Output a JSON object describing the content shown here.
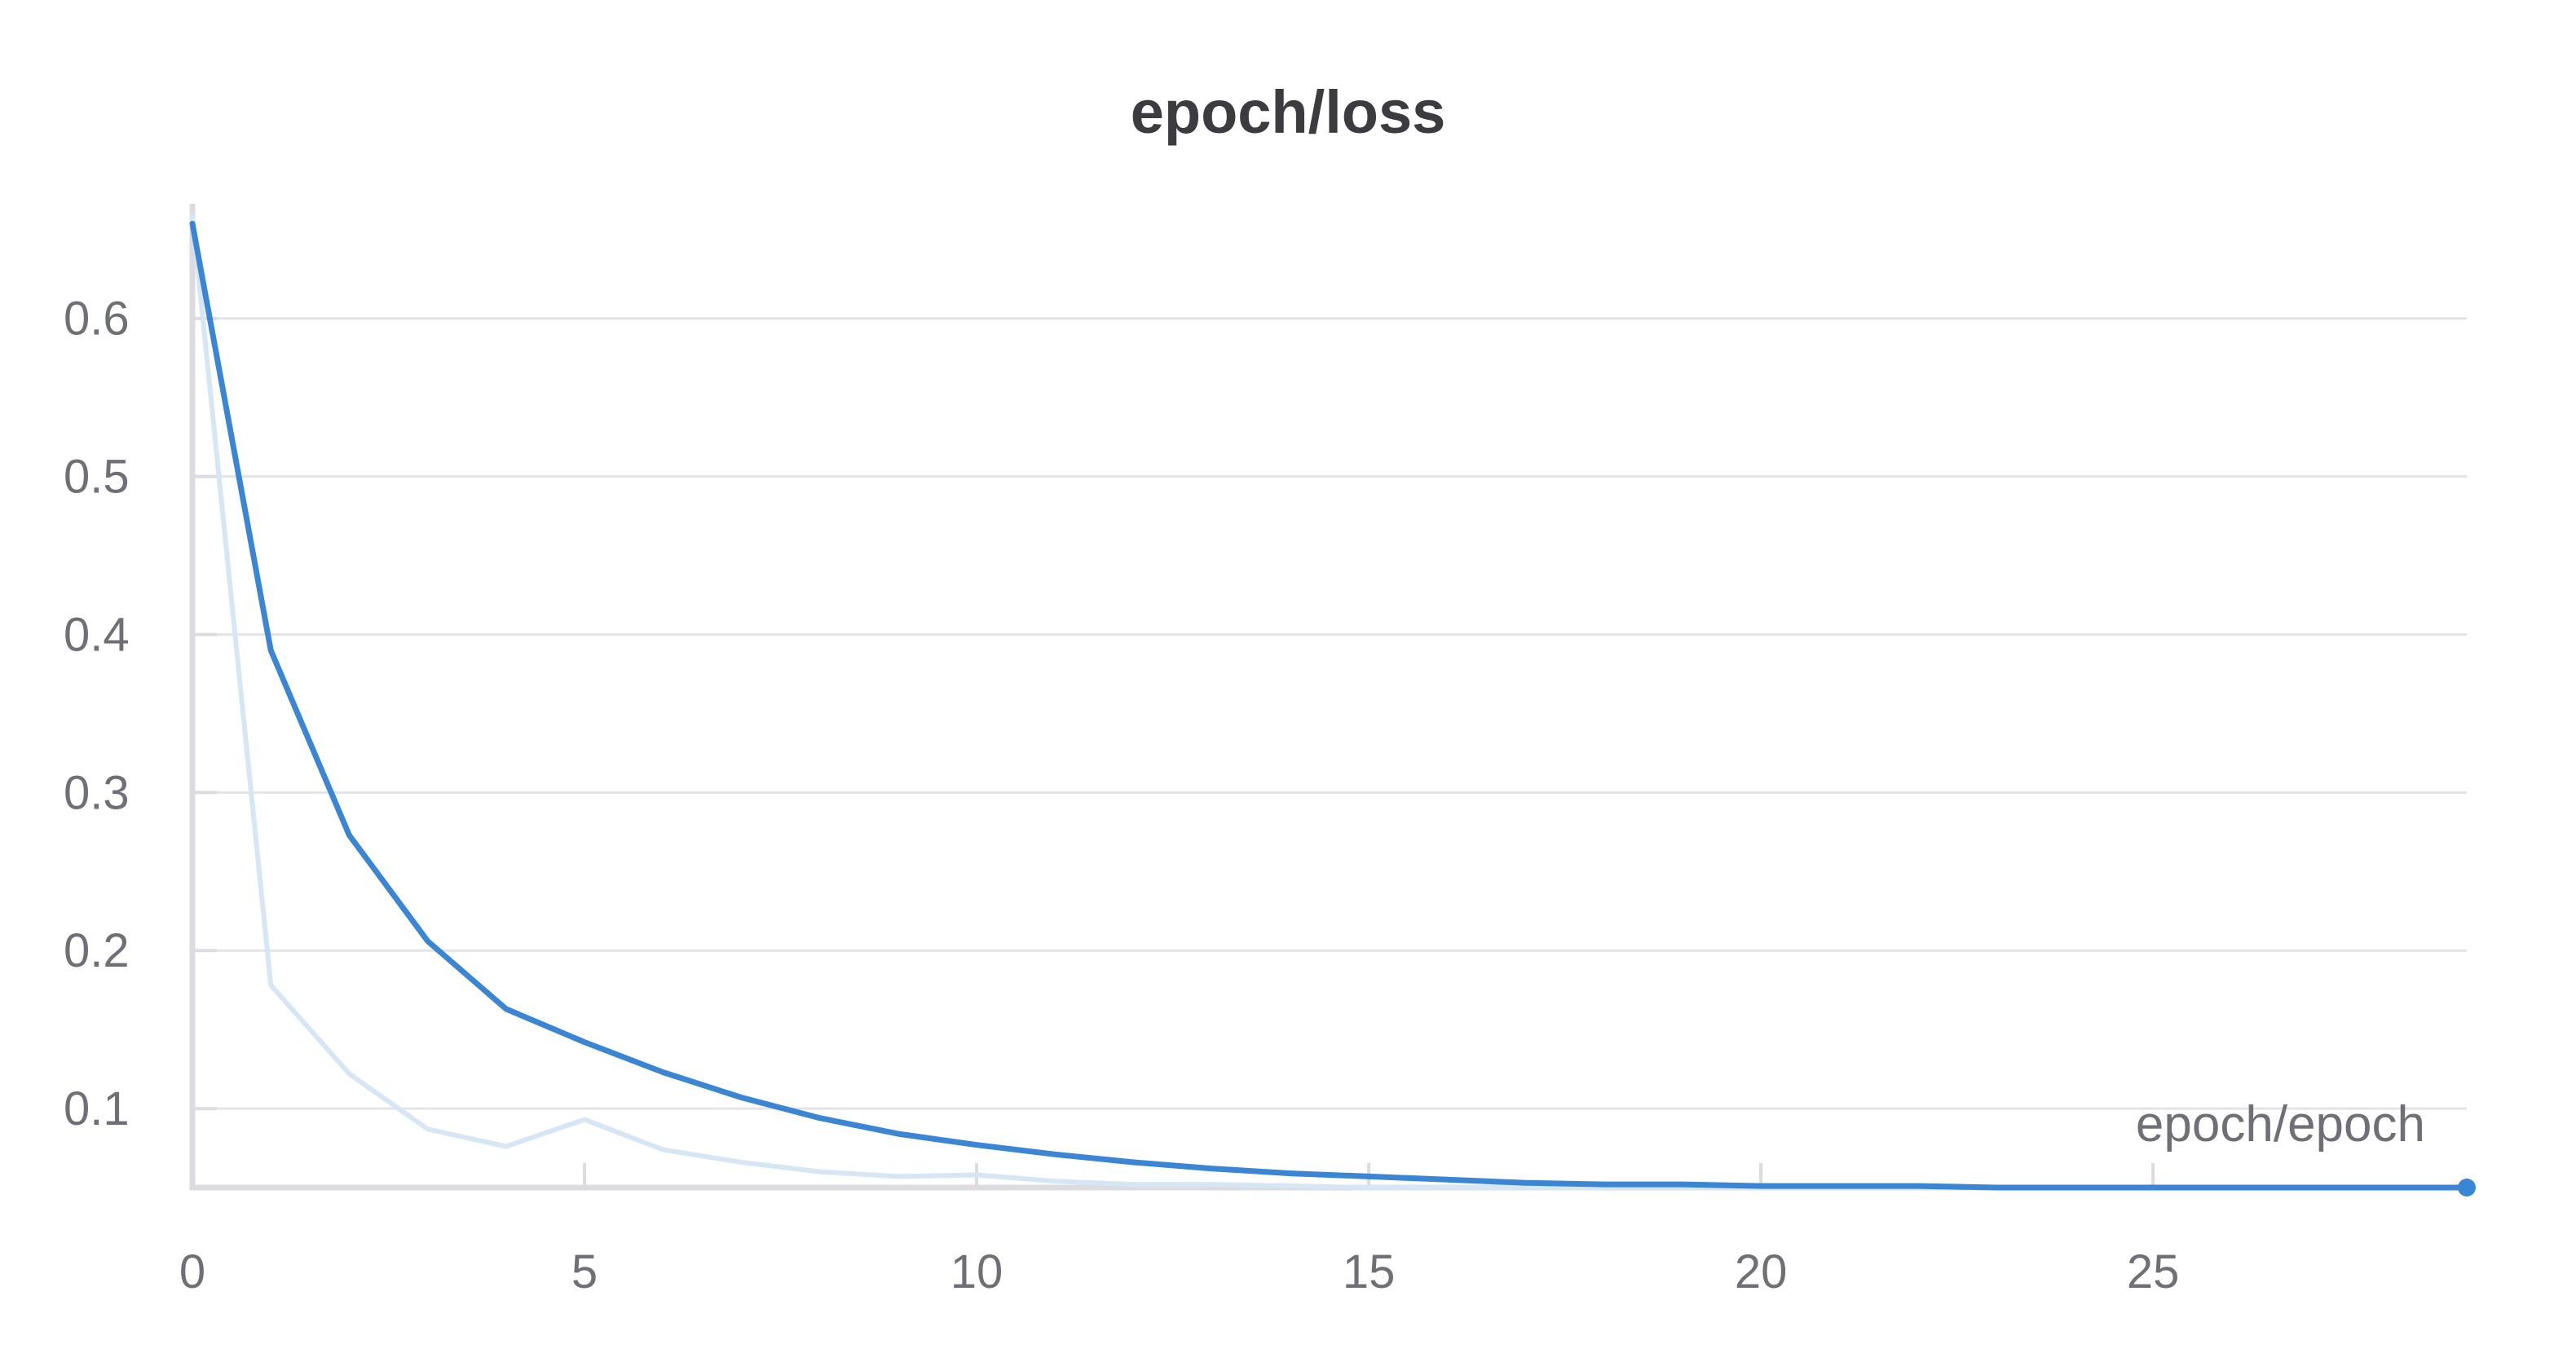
{
  "chart_title": "epoch/loss",
  "chart_data": {
    "type": "line",
    "title": "epoch/loss",
    "xlabel": "epoch/epoch",
    "ylabel": "",
    "xlim": [
      0,
      29
    ],
    "ylim": [
      0.05,
      0.67
    ],
    "x_ticks": [
      0,
      5,
      10,
      15,
      20,
      25
    ],
    "y_ticks": [
      0.1,
      0.2,
      0.3,
      0.4,
      0.5,
      0.6
    ],
    "x_tick_labels": [
      "0",
      "5",
      "10",
      "15",
      "20",
      "25"
    ],
    "y_tick_labels": [
      "0.1",
      "0.2",
      "0.3",
      "0.4",
      "0.5",
      "0.6"
    ],
    "grid": true,
    "series": [
      {
        "role": "raw",
        "color": "#d6e6f5",
        "x": [
          0,
          1,
          2,
          3,
          4,
          5,
          6,
          7,
          8,
          9,
          10,
          11,
          12,
          13,
          14,
          15,
          16,
          17,
          18,
          19,
          20,
          21,
          22,
          23,
          24,
          25,
          26,
          27,
          28,
          29
        ],
        "values": [
          0.665,
          0.178,
          0.122,
          0.087,
          0.076,
          0.093,
          0.074,
          0.066,
          0.06,
          0.057,
          0.058,
          0.054,
          0.052,
          0.052,
          0.051,
          0.05,
          0.05,
          0.05,
          0.05,
          0.05,
          0.05,
          0.05,
          0.05,
          0.05,
          0.05,
          0.05,
          0.05,
          0.05,
          0.05,
          0.05
        ]
      },
      {
        "role": "smoothed",
        "color": "#3a86d4",
        "x": [
          0,
          1,
          2,
          3,
          4,
          5,
          6,
          7,
          8,
          9,
          10,
          11,
          12,
          13,
          14,
          15,
          16,
          17,
          18,
          19,
          20,
          21,
          22,
          23,
          24,
          25,
          26,
          27,
          28,
          29
        ],
        "values": [
          0.66,
          0.39,
          0.273,
          0.206,
          0.163,
          0.142,
          0.123,
          0.107,
          0.094,
          0.084,
          0.077,
          0.071,
          0.066,
          0.062,
          0.059,
          0.057,
          0.055,
          0.053,
          0.052,
          0.052,
          0.051,
          0.051,
          0.051,
          0.05,
          0.05,
          0.05,
          0.05,
          0.05,
          0.05,
          0.05
        ]
      }
    ]
  }
}
